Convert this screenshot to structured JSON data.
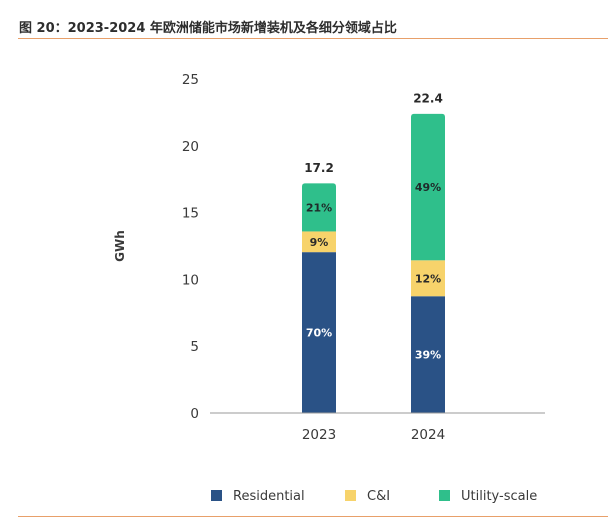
{
  "figure_title": "图 20：2023-2024 年欧洲储能市场新增装机及各细分领域占比",
  "chart_data": {
    "type": "bar",
    "stacked": true,
    "categories": [
      "2023",
      "2024"
    ],
    "ylabel": "GWh",
    "xlabel": "",
    "ylim": [
      0,
      25
    ],
    "yticks": [
      0,
      5,
      10,
      15,
      20,
      25
    ],
    "grid": false,
    "legend_position": "bottom",
    "totals": [
      "17.2",
      "22.4"
    ],
    "series": [
      {
        "name": "Residential",
        "color": "#2a5286",
        "values": [
          12.04,
          8.74
        ],
        "labels": [
          "70%",
          "39%"
        ],
        "label_color": "#ffffff"
      },
      {
        "name": "C&I",
        "color": "#f7d36b",
        "values": [
          1.55,
          2.69
        ],
        "labels": [
          "9%",
          "12%"
        ],
        "label_color": "#2a2a2a"
      },
      {
        "name": "Utility-scale",
        "color": "#2fbf8b",
        "values": [
          3.61,
          10.97
        ],
        "labels": [
          "21%",
          "49%"
        ],
        "label_color": "#1f2a2a"
      }
    ]
  }
}
